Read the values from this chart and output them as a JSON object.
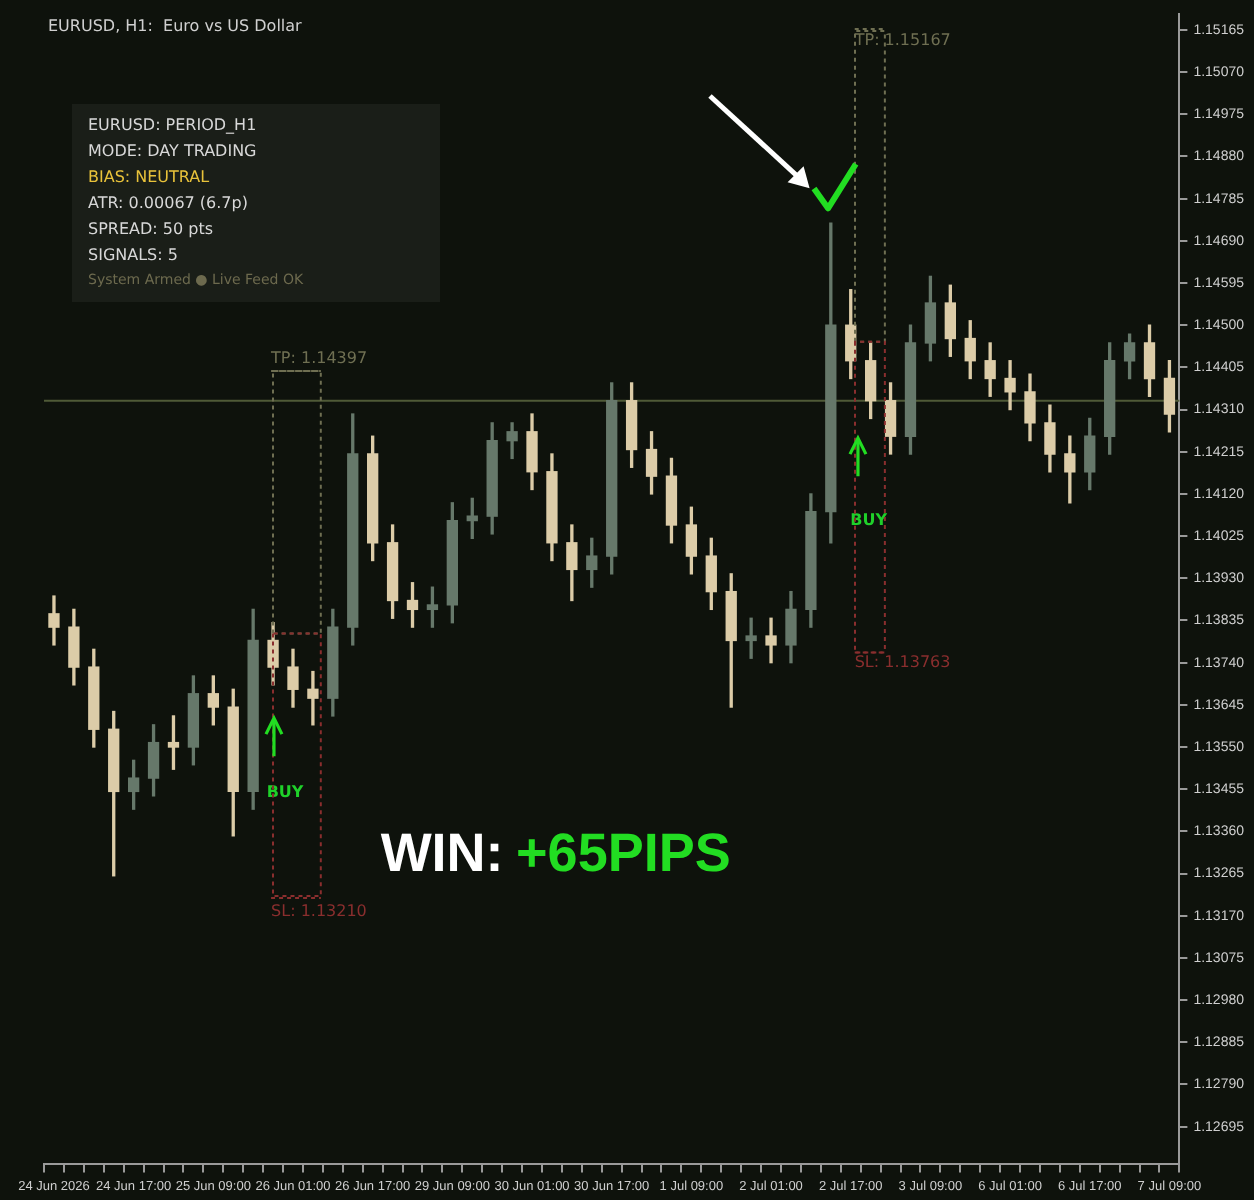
{
  "chart_data": {
    "type": "candlestick",
    "title": "EURUSD, H1:  Euro vs US Dollar",
    "categories": [
      "24 Jun 2026",
      null,
      null,
      null,
      "24 Jun 17:00",
      null,
      null,
      null,
      "25 Jun 09:00",
      null,
      null,
      null,
      "26 Jun 01:00",
      null,
      null,
      null,
      "26 Jun 17:00",
      null,
      null,
      null,
      "29 Jun 09:00",
      null,
      null,
      null,
      "30 Jun 01:00",
      null,
      null,
      null,
      "30 Jun 17:00",
      null,
      null,
      null,
      "1 Jul 09:00",
      null,
      null,
      null,
      "2 Jul 01:00",
      null,
      null,
      null,
      "2 Jul 17:00",
      null,
      null,
      null,
      "3 Jul 09:00",
      null,
      null,
      null,
      "6 Jul 01:00",
      null,
      null,
      null,
      "6 Jul 17:00",
      null,
      null,
      null,
      "7 Jul 09:00"
    ],
    "ohlc": [
      [
        1.1385,
        1.1389,
        1.1378,
        1.1382
      ],
      [
        1.1382,
        1.1386,
        1.1369,
        1.1373
      ],
      [
        1.1373,
        1.1377,
        1.1355,
        1.1359
      ],
      [
        1.1359,
        1.1363,
        1.1326,
        1.1345
      ],
      [
        1.1345,
        1.1352,
        1.1341,
        1.1348
      ],
      [
        1.1348,
        1.136,
        1.1344,
        1.1356
      ],
      [
        1.1356,
        1.1362,
        1.135,
        1.1355
      ],
      [
        1.1355,
        1.1371,
        1.1351,
        1.1367
      ],
      [
        1.1367,
        1.1371,
        1.136,
        1.1364
      ],
      [
        1.1364,
        1.1368,
        1.1335,
        1.1345
      ],
      [
        1.1345,
        1.1386,
        1.1341,
        1.1379
      ],
      [
        1.1379,
        1.1383,
        1.1369,
        1.1373
      ],
      [
        1.1373,
        1.1377,
        1.1364,
        1.1368
      ],
      [
        1.1368,
        1.1372,
        1.136,
        1.1366
      ],
      [
        1.1366,
        1.1386,
        1.1362,
        1.1382
      ],
      [
        1.1382,
        1.143,
        1.1378,
        1.1421
      ],
      [
        1.1421,
        1.1425,
        1.1397,
        1.1401
      ],
      [
        1.1401,
        1.1405,
        1.1384,
        1.1388
      ],
      [
        1.1388,
        1.1392,
        1.1382,
        1.1386
      ],
      [
        1.1386,
        1.1391,
        1.1382,
        1.1387
      ],
      [
        1.1387,
        1.141,
        1.1383,
        1.1406
      ],
      [
        1.1406,
        1.1411,
        1.1402,
        1.1407
      ],
      [
        1.1407,
        1.1428,
        1.1403,
        1.1424
      ],
      [
        1.1424,
        1.1428,
        1.142,
        1.1426
      ],
      [
        1.1426,
        1.143,
        1.1413,
        1.1417
      ],
      [
        1.1417,
        1.1421,
        1.1397,
        1.1401
      ],
      [
        1.1401,
        1.1405,
        1.1388,
        1.1395
      ],
      [
        1.1395,
        1.1402,
        1.1391,
        1.1398
      ],
      [
        1.1398,
        1.1437,
        1.1394,
        1.1433
      ],
      [
        1.1433,
        1.1437,
        1.1418,
        1.1422
      ],
      [
        1.1422,
        1.1426,
        1.1412,
        1.1416
      ],
      [
        1.1416,
        1.142,
        1.1401,
        1.1405
      ],
      [
        1.1405,
        1.1409,
        1.1394,
        1.1398
      ],
      [
        1.1398,
        1.1402,
        1.1386,
        1.139
      ],
      [
        1.139,
        1.1394,
        1.1364,
        1.1379
      ],
      [
        1.1379,
        1.1384,
        1.1375,
        1.138
      ],
      [
        1.138,
        1.1384,
        1.1374,
        1.1378
      ],
      [
        1.1378,
        1.139,
        1.1374,
        1.1386
      ],
      [
        1.1386,
        1.1412,
        1.1382,
        1.1408
      ],
      [
        1.1408,
        1.1473,
        1.1401,
        1.145
      ],
      [
        1.145,
        1.1458,
        1.1438,
        1.1442
      ],
      [
        1.1442,
        1.1446,
        1.1429,
        1.1433
      ],
      [
        1.1433,
        1.1437,
        1.1421,
        1.1425
      ],
      [
        1.1425,
        1.145,
        1.1421,
        1.1446
      ],
      [
        1.1446,
        1.1461,
        1.1442,
        1.1455
      ],
      [
        1.1455,
        1.1459,
        1.1443,
        1.1447
      ],
      [
        1.1447,
        1.1451,
        1.1438,
        1.1442
      ],
      [
        1.1442,
        1.1446,
        1.1434,
        1.1438
      ],
      [
        1.1438,
        1.1442,
        1.1431,
        1.1435
      ],
      [
        1.1435,
        1.1439,
        1.1424,
        1.1428
      ],
      [
        1.1428,
        1.1432,
        1.1417,
        1.1421
      ],
      [
        1.1421,
        1.1425,
        1.141,
        1.1417
      ],
      [
        1.1417,
        1.1429,
        1.1413,
        1.1425
      ],
      [
        1.1425,
        1.1446,
        1.1421,
        1.1442
      ],
      [
        1.1442,
        1.1448,
        1.1438,
        1.1446
      ],
      [
        1.1446,
        1.145,
        1.1434,
        1.1438
      ],
      [
        1.1438,
        1.1442,
        1.1426,
        1.143
      ]
    ],
    "colors": [
      "#dccca8",
      "#dccca8",
      "#dccca8",
      "#dccca8",
      "#66786a",
      "#66786a",
      "#dccca8",
      "#66786a",
      "#dccca8",
      "#dccca8",
      "#66786a",
      "#dccca8",
      "#dccca8",
      "#dccca8",
      "#66786a",
      "#66786a",
      "#dccca8",
      "#dccca8",
      "#dccca8",
      "#66786a",
      "#66786a",
      "#66786a",
      "#66786a",
      "#66786a",
      "#dccca8",
      "#dccca8",
      "#dccca8",
      "#66786a",
      "#66786a",
      "#dccca8",
      "#dccca8",
      "#dccca8",
      "#dccca8",
      "#dccca8",
      "#dccca8",
      "#66786a",
      "#dccca8",
      "#66786a",
      "#66786a",
      "#66786a",
      "#dccca8",
      "#dccca8",
      "#dccca8",
      "#66786a",
      "#66786a",
      "#dccca8",
      "#dccca8",
      "#dccca8",
      "#dccca8",
      "#dccca8",
      "#dccca8",
      "#dccca8",
      "#66786a",
      "#66786a",
      "#66786a",
      "#dccca8",
      "#dccca8"
    ],
    "ylim": [
      1.1261,
      1.152
    ],
    "yticks": [
      1.15165,
      {
        "value": 1.1507,
        "label": "1.15070"
      },
      1.14975,
      {
        "value": 1.1488,
        "label": "1.14880"
      },
      1.14785,
      {
        "value": 1.1469,
        "label": "1.14690"
      },
      1.14595,
      {
        "value": 1.145,
        "label": "1.14500"
      },
      1.14405,
      {
        "value": 1.1431,
        "label": "1.14310"
      },
      1.14215,
      {
        "value": 1.1412,
        "label": "1.14120"
      },
      1.14025,
      {
        "value": 1.1393,
        "label": "1.13930"
      },
      1.13835,
      {
        "value": 1.1374,
        "label": "1.13740"
      },
      1.13645,
      {
        "value": 1.1355,
        "label": "1.13550"
      },
      1.13455,
      {
        "value": 1.1336,
        "label": "1.13360"
      },
      1.13265,
      {
        "value": 1.1317,
        "label": "1.13170"
      },
      1.13075,
      {
        "value": 1.1298,
        "label": "1.12980"
      },
      1.12885,
      {
        "value": 1.1279,
        "label": "1.12790"
      },
      1.12695
    ],
    "ref_lines": [
      {
        "axis": "y",
        "value": 1.1433,
        "color": "#4f5a37"
      },
      {
        "axis": "y",
        "value": 1.14397,
        "label": "TP: 1.14397",
        "color": "#6f6f52",
        "line_style": "dotted"
      },
      {
        "axis": "y",
        "value": 1.1321,
        "label": "SL: 1.13210",
        "color": "#8a2e2e",
        "line_style": "dotted"
      },
      {
        "axis": "y",
        "value": 1.15167,
        "label": "TP: 1.15167",
        "color": "#6f6f52",
        "line_style": "dotted"
      },
      {
        "axis": "y",
        "value": 1.13763,
        "label": "SL: 1.13763",
        "color": "#8a2e2e",
        "line_style": "dotted"
      }
    ],
    "annotations": [
      "BUY",
      "BUY",
      "WIN:",
      "+65PIPS",
      "EURUSD: PERIOD_H1",
      "MODE: DAY TRADING",
      "BIAS: NEUTRAL",
      "ATR: 0.00067  (6.7p)",
      "SPREAD: 50 pts",
      "SIGNALS: 5",
      "System Armed ● Live Feed OK"
    ],
    "grid": false,
    "legend": false
  }
}
